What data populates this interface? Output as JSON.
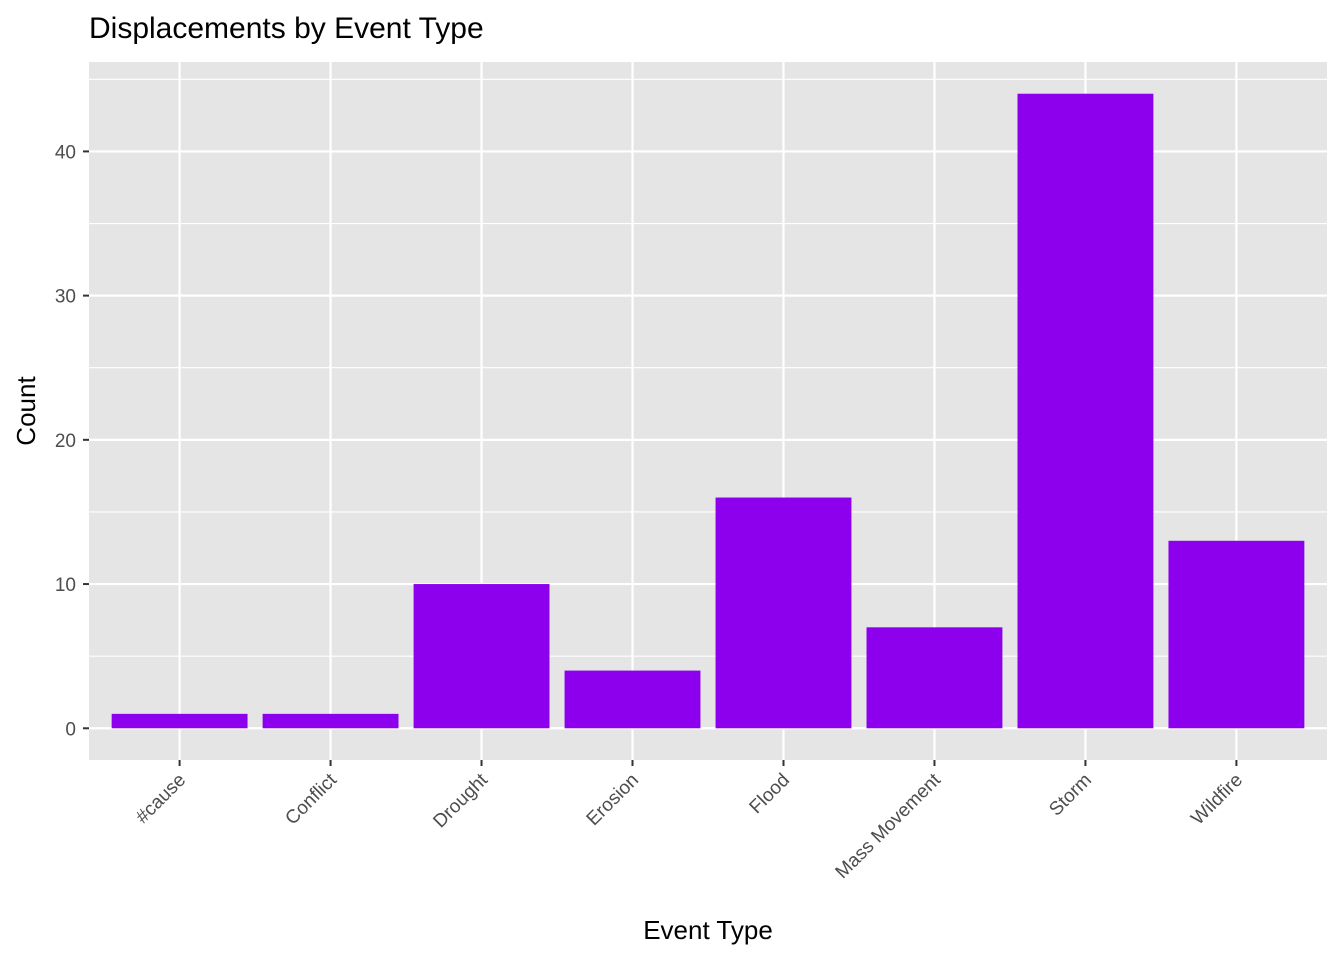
{
  "chart_data": {
    "type": "bar",
    "title": "Displacements by Event Type",
    "xlabel": "Event Type",
    "ylabel": "Count",
    "categories": [
      "#cause",
      "Conflict",
      "Drought",
      "Erosion",
      "Flood",
      "Mass Movement",
      "Storm",
      "Wildfire"
    ],
    "values": [
      1,
      1,
      10,
      4,
      16,
      7,
      44,
      13
    ],
    "ylim": [
      -2.2,
      46.2
    ],
    "yticks": [
      0,
      10,
      20,
      30,
      40
    ],
    "grid": true,
    "legend": "none",
    "colors": {
      "bar": "#8c00ee",
      "panel": "#e5e5e5",
      "grid": "#ffffff",
      "tick_text": "#4d4d4d",
      "tick_mark": "#333333"
    }
  }
}
